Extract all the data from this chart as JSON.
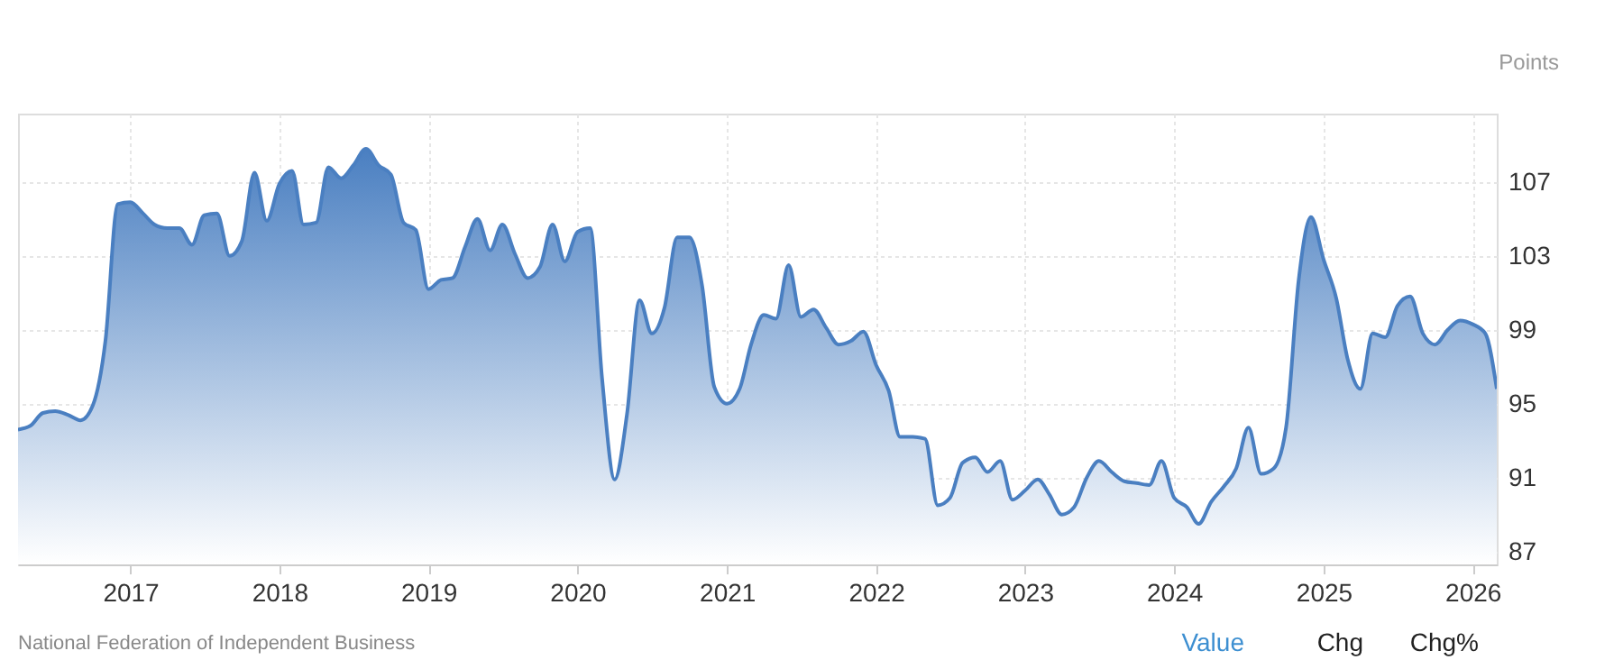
{
  "chart_data": {
    "type": "area",
    "ylabel": "Points",
    "x": [
      "2016-04",
      "2016-05",
      "2016-06",
      "2016-07",
      "2016-08",
      "2016-09",
      "2016-10",
      "2016-11",
      "2016-12",
      "2017-01",
      "2017-02",
      "2017-03",
      "2017-04",
      "2017-05",
      "2017-06",
      "2017-07",
      "2017-08",
      "2017-09",
      "2017-10",
      "2017-11",
      "2017-12",
      "2018-01",
      "2018-02",
      "2018-03",
      "2018-04",
      "2018-05",
      "2018-06",
      "2018-07",
      "2018-08",
      "2018-09",
      "2018-10",
      "2018-11",
      "2018-12",
      "2019-01",
      "2019-02",
      "2019-03",
      "2019-04",
      "2019-05",
      "2019-06",
      "2019-07",
      "2019-08",
      "2019-09",
      "2019-10",
      "2019-11",
      "2019-12",
      "2020-01",
      "2020-02",
      "2020-03",
      "2020-04",
      "2020-05",
      "2020-06",
      "2020-07",
      "2020-08",
      "2020-09",
      "2020-10",
      "2020-11",
      "2020-12",
      "2021-01",
      "2021-02",
      "2021-03",
      "2021-04",
      "2021-05",
      "2021-06",
      "2021-07",
      "2021-08",
      "2021-09",
      "2021-10",
      "2021-11",
      "2021-12",
      "2022-01",
      "2022-02",
      "2022-03",
      "2022-04",
      "2022-05",
      "2022-06",
      "2022-07",
      "2022-08",
      "2022-09",
      "2022-10",
      "2022-11",
      "2022-12",
      "2023-01",
      "2023-02",
      "2023-03",
      "2023-04",
      "2023-05",
      "2023-06",
      "2023-07",
      "2023-08",
      "2023-09",
      "2023-10",
      "2023-11",
      "2023-12",
      "2024-01",
      "2024-02",
      "2024-03",
      "2024-04",
      "2024-05",
      "2024-06",
      "2024-07",
      "2024-08",
      "2024-09",
      "2024-10",
      "2024-11",
      "2024-12",
      "2025-01",
      "2025-02",
      "2025-03",
      "2025-04",
      "2025-05",
      "2025-06",
      "2025-07",
      "2025-08",
      "2025-09",
      "2025-10",
      "2025-11",
      "2025-12",
      "2026-01",
      "2026-02",
      "2026-03"
    ],
    "series": [
      {
        "color": "#4a7fc1",
        "values": [
          93.6,
          93.8,
          94.5,
          94.6,
          94.4,
          94.1,
          94.9,
          98.4,
          105.8,
          105.9,
          105.3,
          104.7,
          104.5,
          104.5,
          103.6,
          105.2,
          105.3,
          103.0,
          103.8,
          107.5,
          104.9,
          106.9,
          107.6,
          104.7,
          104.8,
          107.8,
          107.2,
          107.9,
          108.8,
          107.9,
          107.4,
          104.8,
          104.4,
          101.2,
          101.7,
          101.8,
          103.5,
          105.0,
          103.3,
          104.7,
          103.1,
          101.8,
          102.4,
          104.7,
          102.7,
          104.3,
          104.5,
          96.4,
          90.9,
          94.4,
          100.6,
          98.8,
          100.2,
          104.0,
          104.0,
          101.4,
          95.9,
          95.0,
          95.8,
          98.2,
          99.8,
          99.6,
          102.5,
          99.7,
          100.1,
          99.1,
          98.2,
          98.4,
          98.9,
          97.1,
          95.7,
          93.2,
          93.2,
          93.1,
          89.5,
          89.9,
          91.8,
          92.1,
          91.3,
          91.9,
          89.8,
          90.3,
          90.9,
          90.1,
          89.0,
          89.4,
          91.0,
          91.9,
          91.3,
          90.8,
          90.7,
          90.6,
          91.9,
          89.9,
          89.4,
          88.5,
          89.7,
          90.5,
          91.5,
          93.7,
          91.2,
          91.5,
          93.7,
          101.7,
          105.1,
          102.8,
          100.7,
          97.4,
          95.8,
          98.8,
          98.6,
          100.3,
          100.8,
          98.8,
          98.2,
          99.0,
          99.5,
          99.3,
          98.8,
          95.8
        ]
      }
    ],
    "xlim": [
      "2016-04",
      "2026-03"
    ],
    "xticks": [
      "2017",
      "2018",
      "2019",
      "2020",
      "2021",
      "2022",
      "2023",
      "2024",
      "2025",
      "2026"
    ],
    "ylim": [
      86.3,
      110.7
    ],
    "yticks": [
      87,
      91,
      95,
      99,
      103,
      107
    ],
    "grid": true,
    "annotations": [
      "National Federation of Independent Business",
      "Value",
      "Chg",
      "Chg%"
    ]
  }
}
